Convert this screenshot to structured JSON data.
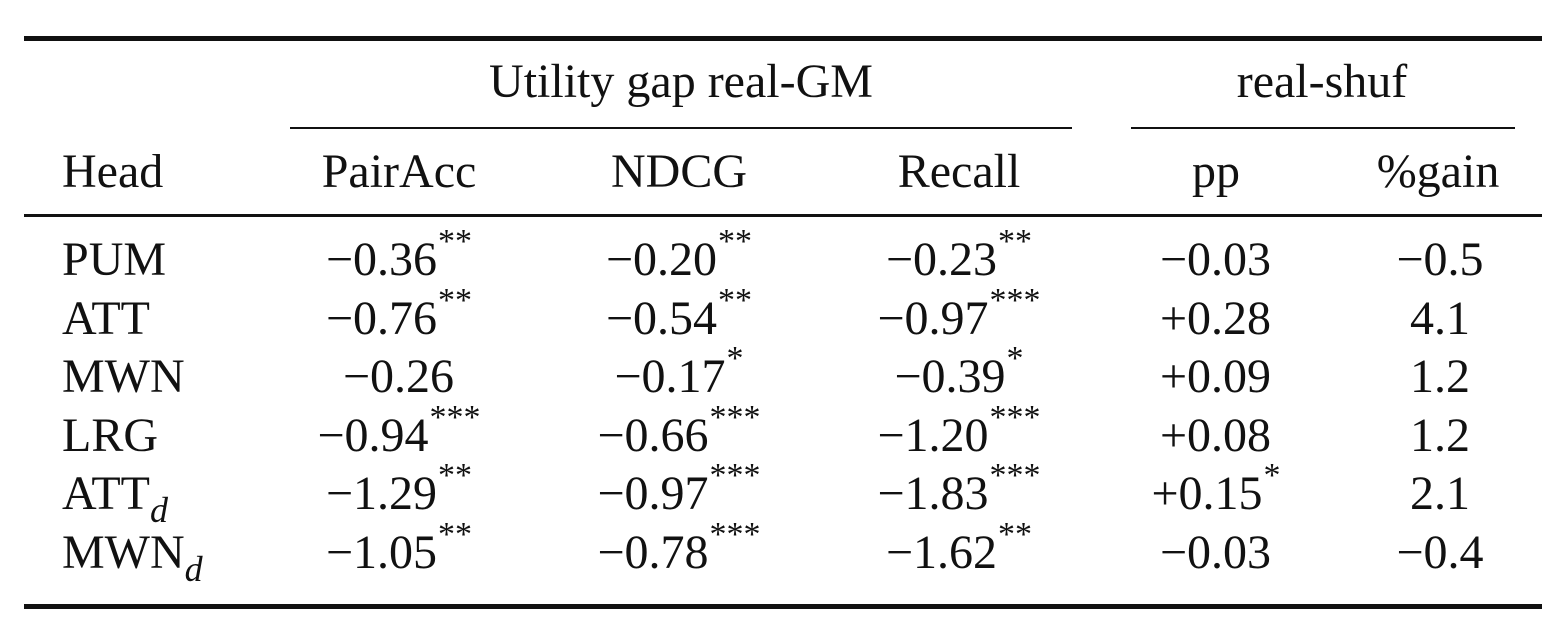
{
  "table": {
    "group_headers": {
      "utility": "Utility gap real-GM",
      "shuffle": "real-shuf"
    },
    "columns": {
      "head": "Head",
      "pairacc": "PairAcc",
      "ndcg": "NDCG",
      "recall": "Recall",
      "pp": "pp",
      "gain": "%gain"
    },
    "rows": [
      {
        "head": "PUM",
        "head_sub": "",
        "pairacc": "−0.36",
        "pairacc_sig": "**",
        "ndcg": "−0.20",
        "ndcg_sig": "**",
        "recall": "−0.23",
        "recall_sig": "**",
        "pp": "−0.03",
        "pp_sig": "",
        "gain": "−0.5"
      },
      {
        "head": "ATT",
        "head_sub": "",
        "pairacc": "−0.76",
        "pairacc_sig": "**",
        "ndcg": "−0.54",
        "ndcg_sig": "**",
        "recall": "−0.97",
        "recall_sig": "***",
        "pp": "+0.28",
        "pp_sig": "",
        "gain": "4.1"
      },
      {
        "head": "MWN",
        "head_sub": "",
        "pairacc": "−0.26",
        "pairacc_sig": "",
        "ndcg": "−0.17",
        "ndcg_sig": "*",
        "recall": "−0.39",
        "recall_sig": "*",
        "pp": "+0.09",
        "pp_sig": "",
        "gain": "1.2"
      },
      {
        "head": "LRG",
        "head_sub": "",
        "pairacc": "−0.94",
        "pairacc_sig": "***",
        "ndcg": "−0.66",
        "ndcg_sig": "***",
        "recall": "−1.20",
        "recall_sig": "***",
        "pp": "+0.08",
        "pp_sig": "",
        "gain": "1.2"
      },
      {
        "head": "ATT",
        "head_sub": "d",
        "pairacc": "−1.29",
        "pairacc_sig": "**",
        "ndcg": "−0.97",
        "ndcg_sig": "***",
        "recall": "−1.83",
        "recall_sig": "***",
        "pp": "+0.15",
        "pp_sig": "*",
        "gain": "2.1"
      },
      {
        "head": "MWN",
        "head_sub": "d",
        "pairacc": "−1.05",
        "pairacc_sig": "**",
        "ndcg": "−0.78",
        "ndcg_sig": "***",
        "recall": "−1.62",
        "recall_sig": "**",
        "pp": "−0.03",
        "pp_sig": "",
        "gain": "−0.4"
      }
    ]
  }
}
